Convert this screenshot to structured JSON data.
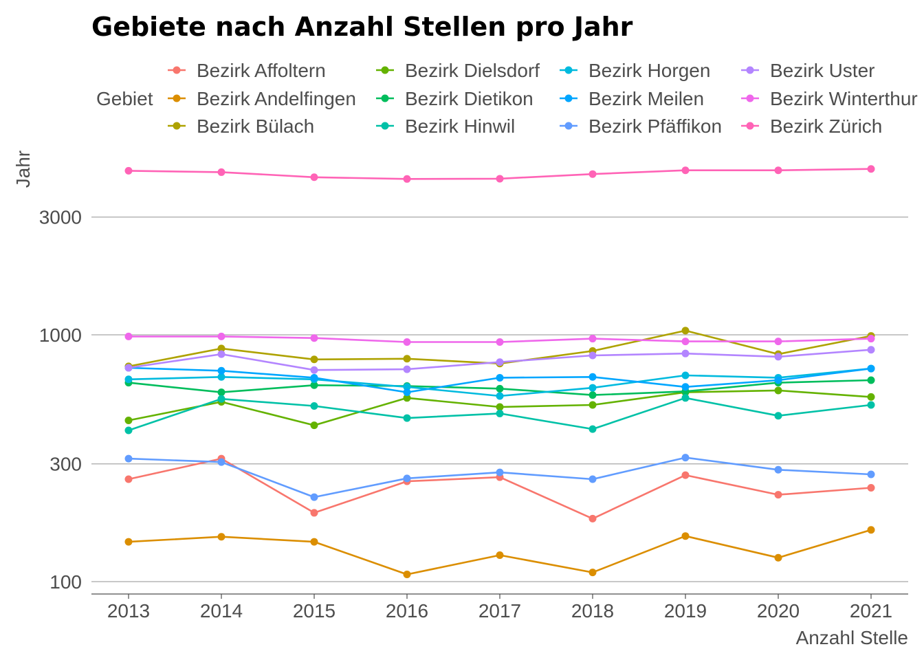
{
  "chart_data": {
    "type": "line",
    "title": "Gebiete nach Anzahl Stellen pro Jahr",
    "xlabel": "Anzahl Stelle",
    "ylabel": "Jahr",
    "legend_title": "Gebiet",
    "y_scale": "log",
    "ylim": [
      90,
      5000
    ],
    "y_ticks": [
      100,
      300,
      1000,
      3000
    ],
    "x": [
      2013,
      2014,
      2015,
      2016,
      2017,
      2018,
      2019,
      2020,
      2021
    ],
    "grid": "horizontal major lines",
    "legend_position": "top",
    "series": [
      {
        "name": "Bezirk Affoltern",
        "color": "#F8766D",
        "values": [
          260,
          315,
          190,
          255,
          265,
          180,
          270,
          225,
          240
        ]
      },
      {
        "name": "Bezirk Andelfingen",
        "color": "#DB8E00",
        "values": [
          145,
          152,
          145,
          107,
          128,
          109,
          153,
          125,
          162
        ]
      },
      {
        "name": "Bezirk Bülach",
        "color": "#AEA200",
        "values": [
          745,
          880,
          795,
          800,
          765,
          860,
          1040,
          835,
          990
        ]
      },
      {
        "name": "Bezirk Dielsdorf",
        "color": "#64B200",
        "values": [
          450,
          535,
          430,
          555,
          510,
          520,
          585,
          595,
          560
        ]
      },
      {
        "name": "Bezirk Dietikon",
        "color": "#00BD5C",
        "values": [
          640,
          585,
          625,
          620,
          605,
          570,
          590,
          640,
          655
        ]
      },
      {
        "name": "Bezirk Hinwil",
        "color": "#00C1A7",
        "values": [
          410,
          550,
          515,
          460,
          480,
          415,
          555,
          470,
          520
        ]
      },
      {
        "name": "Bezirk Horgen",
        "color": "#00BADE",
        "values": [
          660,
          675,
          660,
          615,
          565,
          610,
          685,
          670,
          730
        ]
      },
      {
        "name": "Bezirk Meilen",
        "color": "#00A6FF",
        "values": [
          735,
          715,
          670,
          585,
          670,
          675,
          615,
          655,
          730
        ]
      },
      {
        "name": "Bezirk Pfäffikon",
        "color": "#619CFF",
        "values": [
          315,
          305,
          220,
          262,
          277,
          260,
          318,
          284,
          272
        ]
      },
      {
        "name": "Bezirk Uster",
        "color": "#B385FF",
        "values": [
          735,
          835,
          720,
          725,
          775,
          825,
          840,
          815,
          870
        ]
      },
      {
        "name": "Bezirk Winterthur",
        "color": "#EF67EB",
        "values": [
          985,
          985,
          970,
          935,
          935,
          965,
          940,
          940,
          965
        ]
      },
      {
        "name": "Bezirk Zürich",
        "color": "#FF63B6",
        "values": [
          4620,
          4560,
          4350,
          4280,
          4290,
          4480,
          4640,
          4640,
          4700
        ]
      }
    ]
  }
}
